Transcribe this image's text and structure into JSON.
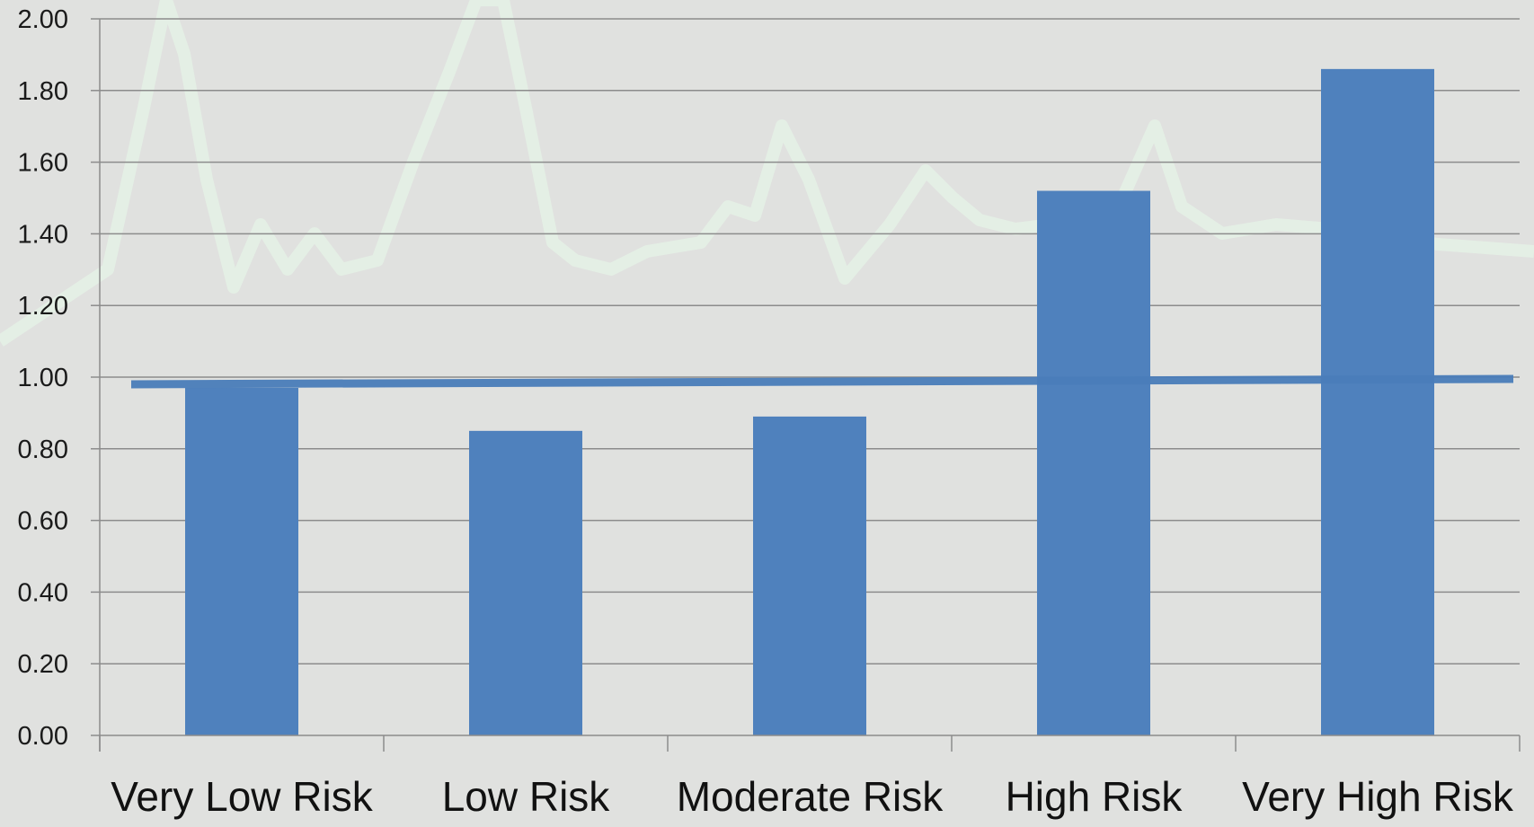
{
  "chart_data": {
    "type": "bar",
    "title": "",
    "xlabel": "",
    "ylabel": "",
    "categories": [
      "Very Low Risk",
      "Low Risk",
      "Moderate Risk",
      "High Risk",
      "Very High Risk"
    ],
    "values": [
      0.97,
      0.85,
      0.89,
      1.52,
      1.86
    ],
    "ylim": [
      0,
      2.0
    ],
    "yticks": [
      "0.00",
      "0.20",
      "0.40",
      "0.60",
      "0.80",
      "1.00",
      "1.20",
      "1.40",
      "1.60",
      "1.80",
      "2.00"
    ],
    "reference_line": {
      "y_start": 0.98,
      "y_end": 0.995
    },
    "grid": true,
    "legend": "none",
    "colors": {
      "bar": "#4f81bd",
      "reference_line": "#4a7dba",
      "grid": "#8c8c8c",
      "background": "#e0e1df",
      "background_trace": "#e4f1e6"
    }
  }
}
